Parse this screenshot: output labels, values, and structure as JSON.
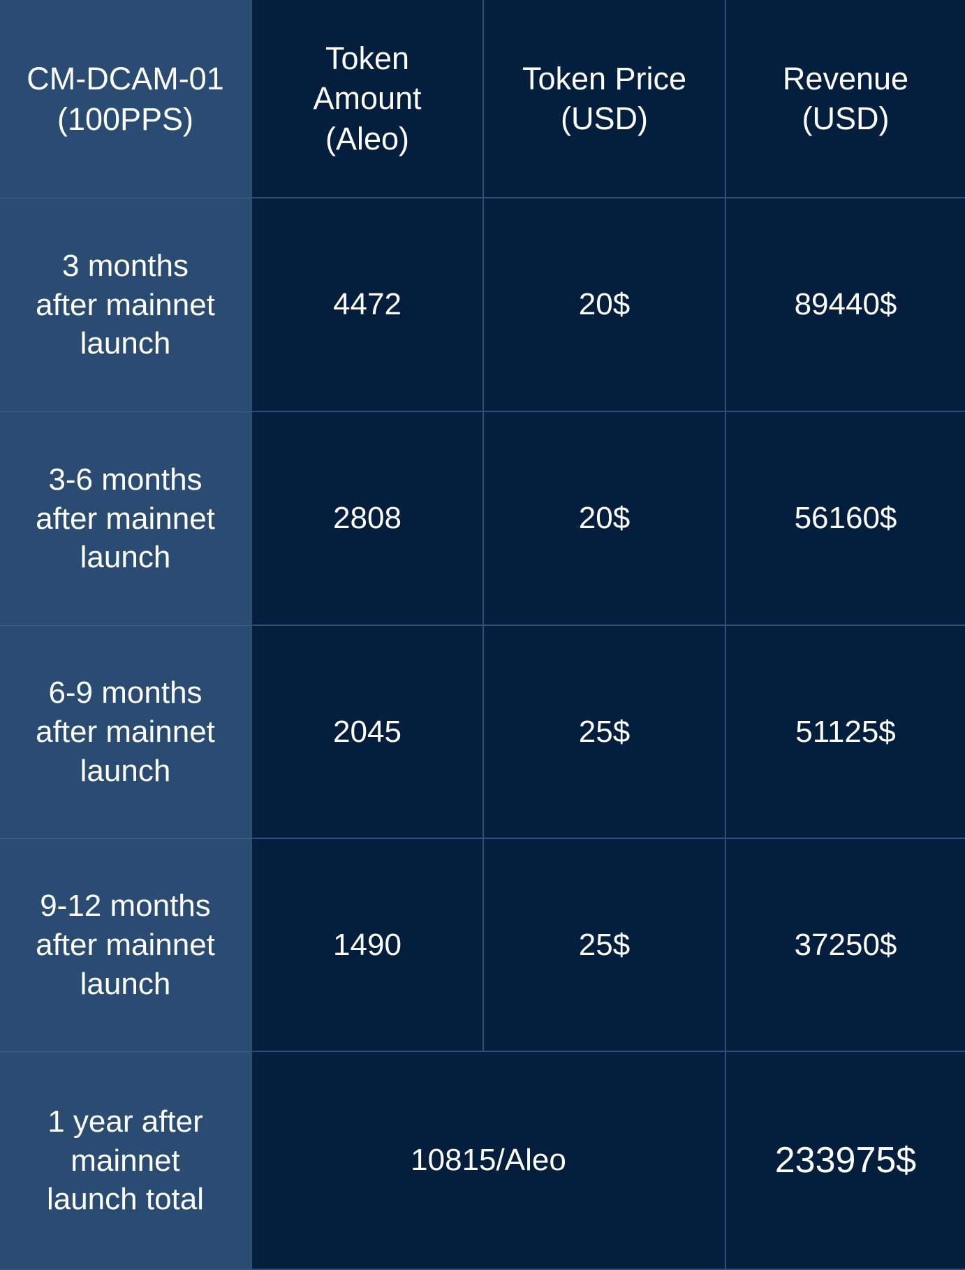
{
  "table": {
    "headers": {
      "corner": "CM-DCAM-01\n(100PPS)",
      "token_amount": "Token\nAmount\n(Aleo)",
      "token_price": "Token Price\n(USD)",
      "revenue": "Revenue\n(USD)"
    },
    "rows": [
      {
        "period": "3 months\nafter mainnet\nlaunch",
        "amount": "4472",
        "price": "20$",
        "revenue": "89440$"
      },
      {
        "period": "3-6 months\nafter mainnet\nlaunch",
        "amount": "2808",
        "price": "20$",
        "revenue": "56160$"
      },
      {
        "period": "6-9 months\nafter mainnet\nlaunch",
        "amount": "2045",
        "price": "25$",
        "revenue": "51125$"
      },
      {
        "period": "9-12 months\nafter mainnet\nlaunch",
        "amount": "1490",
        "price": "25$",
        "revenue": "37250$"
      }
    ],
    "total": {
      "period": "1 year after\nmainnet\nlaunch total",
      "amount": "10815/Aleo",
      "revenue": "233975$"
    }
  },
  "colors": {
    "row_header_bg": "#2b4c72",
    "data_cell_bg": "#041f3d",
    "grid_line": "#2e4f78",
    "text": "#ffffff"
  }
}
